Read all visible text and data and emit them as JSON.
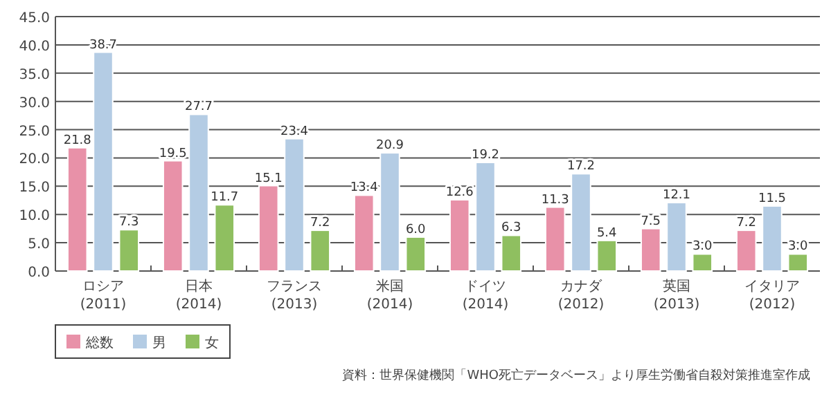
{
  "chart_data": {
    "type": "bar",
    "categories": [
      "ロシア\n(2011)",
      "日本\n(2014)",
      "フランス\n(2013)",
      "米国\n(2014)",
      "ドイツ\n(2014)",
      "カナダ\n(2012)",
      "英国\n(2013)",
      "イタリア\n(2012)"
    ],
    "series": [
      {
        "name": "総数",
        "color": "#e891a8",
        "values": [
          21.8,
          19.5,
          15.1,
          13.4,
          12.6,
          11.3,
          7.5,
          7.2
        ],
        "value_labels": [
          "21.8",
          "19.5",
          "15.1",
          "13.4",
          "12.6",
          "11.3",
          "7.5",
          "7.2"
        ]
      },
      {
        "name": "男",
        "color": "#b4cce4",
        "values": [
          38.7,
          27.7,
          23.4,
          20.9,
          19.2,
          17.2,
          12.1,
          11.5
        ],
        "value_labels": [
          "38.7",
          "27.7",
          "23.4",
          "20.9",
          "19.2",
          "17.2",
          "12.1",
          "11.5"
        ]
      },
      {
        "name": "女",
        "color": "#8fbf60",
        "values": [
          7.3,
          11.7,
          7.2,
          6.0,
          6.3,
          5.4,
          3.0,
          3.0
        ],
        "value_labels": [
          "7.3",
          "11.7",
          "7.2",
          "6.0",
          "6.3",
          "5.4",
          "3.0",
          "3.0"
        ]
      }
    ],
    "ylim": [
      0,
      45
    ],
    "yticks": [
      {
        "value": 0,
        "label": "0.0"
      },
      {
        "value": 5,
        "label": "5.0"
      },
      {
        "value": 10,
        "label": "10.0"
      },
      {
        "value": 15,
        "label": "15.0"
      },
      {
        "value": 20,
        "label": "20.0"
      },
      {
        "value": 25,
        "label": "25.0"
      },
      {
        "value": 30,
        "label": "30.0"
      },
      {
        "value": 35,
        "label": "35.0"
      },
      {
        "value": 40,
        "label": "40.0"
      },
      {
        "value": 45,
        "label": "45.0"
      }
    ],
    "grid": "y",
    "legend": "bottom left",
    "annotations": [
      "資料：世界保健機関「WHO死亡データベース」より厚生労働省自殺対策推進室作成"
    ]
  }
}
